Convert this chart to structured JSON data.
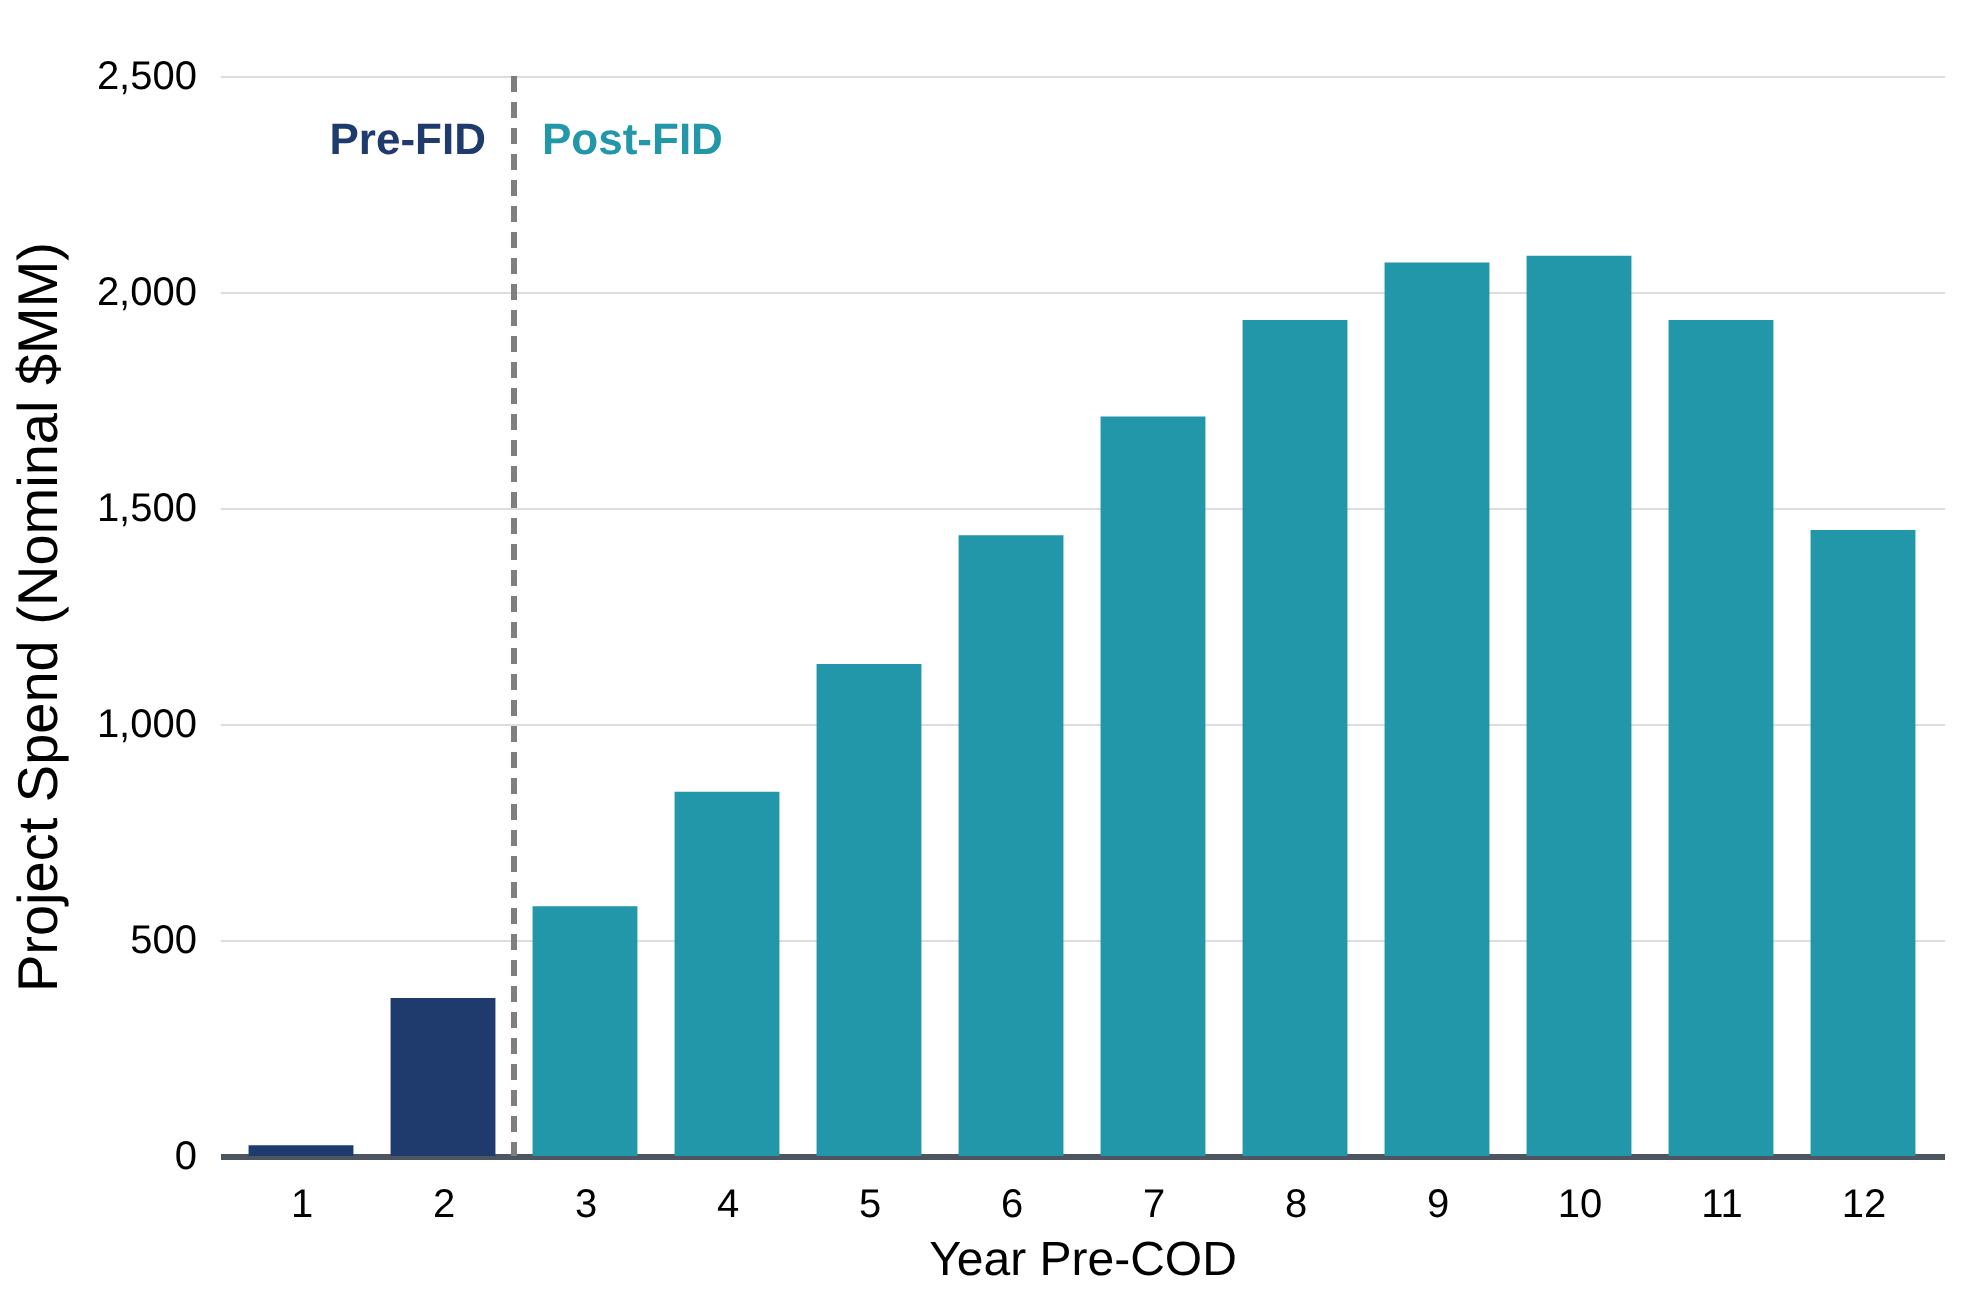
{
  "chart_data": {
    "type": "bar",
    "x": [
      1,
      2,
      3,
      4,
      5,
      6,
      7,
      8,
      9,
      10,
      11,
      12
    ],
    "values": [
      25,
      366,
      578,
      843,
      1139,
      1437,
      1712,
      1935,
      2068,
      2084,
      1935,
      1449
    ],
    "colors": [
      "#1f3b6e",
      "#1f3b6e",
      "#2297aa",
      "#2297aa",
      "#2297aa",
      "#2297aa",
      "#2297aa",
      "#2297aa",
      "#2297aa",
      "#2297aa",
      "#2297aa",
      "#2297aa"
    ],
    "xlabel": "Year Pre-COD",
    "ylabel": "Project Spend (Nominal $MM)",
    "xlim": [
      0.5,
      12.5
    ],
    "xticks": [
      1,
      2,
      3,
      4,
      5,
      6,
      7,
      8,
      9,
      10,
      11,
      12
    ],
    "ylim": [
      0,
      2500
    ],
    "yticks": [
      0,
      {
        "value": 500,
        "label": "500"
      },
      {
        "value": 1000,
        "label": "1,000"
      },
      {
        "value": 1500,
        "label": "1,500"
      },
      {
        "value": 2000,
        "label": "2,000"
      },
      {
        "value": 2500,
        "label": "2,500"
      }
    ],
    "grid": "y",
    "ref_lines": [
      {
        "axis": "x",
        "value": 2.5,
        "color": "#7f7f7f",
        "line_style": "dashed"
      }
    ],
    "annotations": [
      "Pre-FID",
      "Post-FID"
    ]
  }
}
